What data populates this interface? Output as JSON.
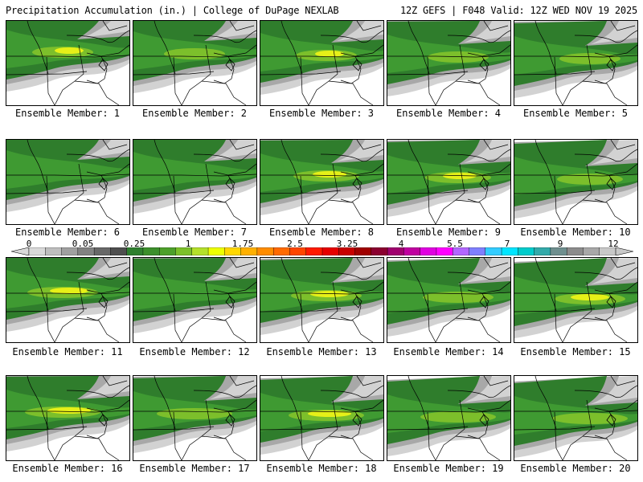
{
  "header": {
    "left": "Precipitation Accumulation (in.) | College of DuPage NEXLAB",
    "right": "12Z GEFS | F048 Valid: 12Z WED NOV 19 2025"
  },
  "panel_label_prefix": "Ensemble Member: ",
  "members": [
    {
      "label": "Ensemble Member: 1",
      "peak": "yellow"
    },
    {
      "label": "Ensemble Member: 2",
      "peak": "lightgreen"
    },
    {
      "label": "Ensemble Member: 3",
      "peak": "yellow"
    },
    {
      "label": "Ensemble Member: 4",
      "peak": "lightgreen"
    },
    {
      "label": "Ensemble Member: 5",
      "peak": "lightgreen"
    },
    {
      "label": "Ensemble Member: 6",
      "peak": "green"
    },
    {
      "label": "Ensemble Member: 7",
      "peak": "green"
    },
    {
      "label": "Ensemble Member: 8",
      "peak": "yellow"
    },
    {
      "label": "Ensemble Member: 9",
      "peak": "yellow"
    },
    {
      "label": "Ensemble Member: 10",
      "peak": "lightgreen"
    },
    {
      "label": "Ensemble Member: 11",
      "peak": "yellow"
    },
    {
      "label": "Ensemble Member: 12",
      "peak": "green"
    },
    {
      "label": "Ensemble Member: 13",
      "peak": "yellow"
    },
    {
      "label": "Ensemble Member: 14",
      "peak": "lightgreen"
    },
    {
      "label": "Ensemble Member: 15",
      "peak": "yellow"
    },
    {
      "label": "Ensemble Member: 16",
      "peak": "yellow"
    },
    {
      "label": "Ensemble Member: 17",
      "peak": "lightgreen"
    },
    {
      "label": "Ensemble Member: 18",
      "peak": "yellow"
    },
    {
      "label": "Ensemble Member: 19",
      "peak": "lightgreen"
    },
    {
      "label": "Ensemble Member: 20",
      "peak": "lightgreen"
    }
  ],
  "scale": {
    "labels": [
      "0",
      "0.05",
      "0.25",
      "1",
      "1.75",
      "2.5",
      "3.25",
      "4",
      "5.5",
      "7",
      "9",
      "12"
    ],
    "colors": [
      "#d9d9d9",
      "#bebebe",
      "#a0a0a0",
      "#828282",
      "#686868",
      "#4e4e4e",
      "#2f7f2f",
      "#3c8f2c",
      "#4da02a",
      "#7cc02a",
      "#b4e02a",
      "#eeff00",
      "#ffd700",
      "#ffb000",
      "#ff8c00",
      "#ff6a00",
      "#ff4500",
      "#ff1a00",
      "#e60000",
      "#c80000",
      "#a00000",
      "#8b0030",
      "#a0006e",
      "#c000a0",
      "#e000e0",
      "#ff00ff",
      "#b266ff",
      "#7f7fff",
      "#33ccff",
      "#00e5ff",
      "#00cccc",
      "#33aaaa",
      "#6f8f8f",
      "#8c8c8c",
      "#a8a8a8",
      "#c8c8c8"
    ]
  },
  "colors": {
    "gray_light": "#d2d2d2",
    "gray_mid": "#a8a8a8",
    "gray_dark": "#7d7d7d",
    "green_dark": "#2f7d2c",
    "green": "#3f9a32",
    "green_light": "#7cbf2b",
    "yellow": "#e6f018"
  }
}
